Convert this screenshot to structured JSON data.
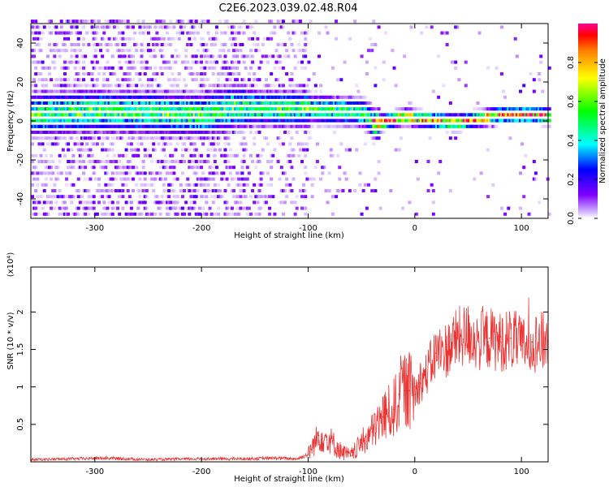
{
  "title": "C2E6.2023.039.02.48.R04",
  "chart_data": [
    {
      "type": "heatmap",
      "xlabel": "Height of straight line (km)",
      "ylabel": "Frequency (Hz)",
      "xlim": [
        -360,
        125
      ],
      "ylim": [
        -50,
        50
      ],
      "xticks": [
        -300,
        -200,
        -100,
        0,
        100
      ],
      "yticks": [
        -40,
        -20,
        0,
        20,
        40
      ],
      "ridge": {
        "x": [
          -360,
          -300,
          -250,
          -200,
          -170,
          -130,
          -100,
          -70,
          -50,
          -38,
          -25,
          -10,
          0,
          20,
          40,
          60,
          80,
          100,
          115,
          125
        ],
        "freq": [
          1,
          3,
          2,
          1,
          5,
          4,
          4,
          3,
          2,
          -4,
          -2,
          0,
          -1,
          -2,
          -3,
          -1,
          1,
          1,
          1,
          0
        ]
      },
      "colorbar": {
        "label": "Normalized spectral amplitude",
        "ticks": [
          0.0,
          0.2,
          0.4,
          0.6,
          0.8
        ],
        "range": [
          0,
          1
        ]
      },
      "grid": false
    },
    {
      "type": "line",
      "xlabel": "Height of straight line (km)",
      "ylabel": "SNR (10 * v/v)",
      "y_multiplier": "(x10⁴)",
      "xlim": [
        -360,
        125
      ],
      "ylim": [
        0,
        2.6
      ],
      "xticks": [
        -300,
        -200,
        -100,
        0,
        100
      ],
      "yticks": [
        0.5,
        1.0,
        1.5,
        2.0
      ],
      "series": [
        {
          "color": "#ee3333",
          "x": [
            -360,
            -320,
            -290,
            -250,
            -200,
            -160,
            -130,
            -110,
            -100,
            -90,
            -80,
            -70,
            -60,
            -50,
            -40,
            -30,
            -20,
            -15,
            -10,
            -5,
            0,
            5,
            10,
            20,
            30,
            40,
            50,
            60,
            70,
            80,
            90,
            100,
            110,
            125
          ],
          "y": [
            0.03,
            0.04,
            0.05,
            0.03,
            0.04,
            0.04,
            0.05,
            0.04,
            0.1,
            0.35,
            0.3,
            0.15,
            0.08,
            0.25,
            0.4,
            0.6,
            0.7,
            0.9,
            0.95,
            0.95,
            0.9,
            1.05,
            1.15,
            1.45,
            1.5,
            1.65,
            1.7,
            1.6,
            1.65,
            1.6,
            1.65,
            1.55,
            1.6,
            1.6
          ]
        }
      ],
      "grid": false
    }
  ]
}
